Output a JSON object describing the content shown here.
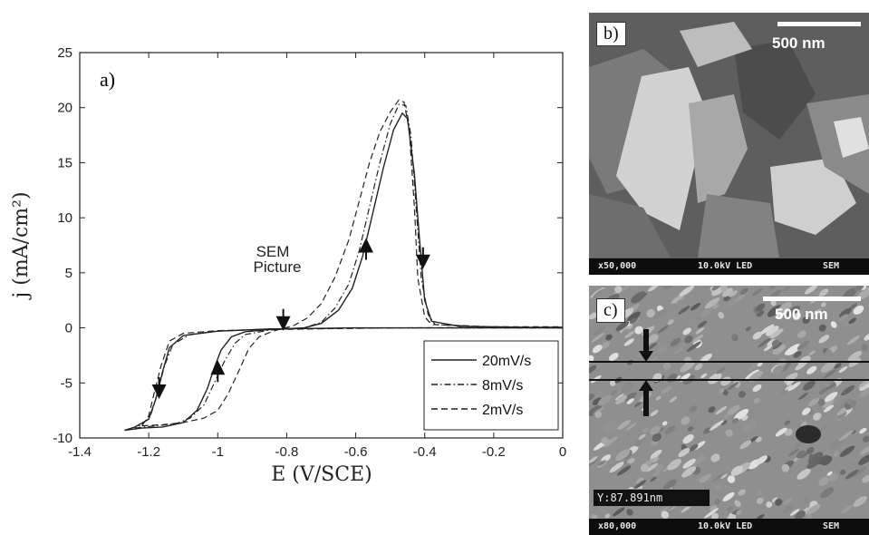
{
  "chart_data": {
    "type": "line",
    "panel_label": "a)",
    "xlabel": "E (V/SCE)",
    "ylabel": "j (mA/cm²)",
    "xlim": [
      -1.4,
      0
    ],
    "ylim": [
      -10,
      25
    ],
    "xticks": [
      "-1.4",
      "-1.2",
      "-1",
      "-0.8",
      "-0.6",
      "-0.4",
      "-0.2",
      "0"
    ],
    "yticks": [
      "-10",
      "-5",
      "0",
      "5",
      "10",
      "15",
      "20",
      "25"
    ],
    "grid": false,
    "legend_position": "bottom-right",
    "annotation": {
      "line1": "SEM",
      "line2": "Picture",
      "x": -0.81,
      "y": 0
    },
    "series": [
      {
        "name": "20mV/s",
        "style": "solid",
        "forward": [
          [
            -1.27,
            -9.3
          ],
          [
            -1.22,
            -9.1
          ],
          [
            -1.16,
            -9.0
          ],
          [
            -1.1,
            -8.6
          ],
          [
            -1.06,
            -7.5
          ],
          [
            -1.03,
            -5.5
          ],
          [
            -1.01,
            -3.6
          ],
          [
            -0.99,
            -2.0
          ],
          [
            -0.96,
            -0.8
          ],
          [
            -0.92,
            -0.35
          ],
          [
            -0.85,
            -0.15
          ],
          [
            -0.75,
            0.0
          ],
          [
            -0.7,
            0.4
          ],
          [
            -0.65,
            1.6
          ],
          [
            -0.61,
            3.6
          ],
          [
            -0.58,
            6.5
          ],
          [
            -0.55,
            10.5
          ],
          [
            -0.52,
            14.5
          ],
          [
            -0.49,
            18.0
          ],
          [
            -0.465,
            19.5
          ],
          [
            -0.45,
            19.0
          ],
          [
            -0.43,
            14.0
          ],
          [
            -0.415,
            8.0
          ],
          [
            -0.4,
            2.5
          ],
          [
            -0.38,
            0.6
          ],
          [
            -0.3,
            0.15
          ],
          [
            -0.1,
            0.05
          ],
          [
            0.0,
            0.05
          ]
        ],
        "reverse": [
          [
            0.0,
            0.0
          ],
          [
            -0.3,
            0.0
          ],
          [
            -0.6,
            0.0
          ],
          [
            -0.85,
            -0.1
          ],
          [
            -1.0,
            -0.3
          ],
          [
            -1.1,
            -0.7
          ],
          [
            -1.14,
            -1.8
          ],
          [
            -1.16,
            -4.0
          ],
          [
            -1.18,
            -6.5
          ],
          [
            -1.2,
            -8.3
          ],
          [
            -1.24,
            -9.0
          ],
          [
            -1.27,
            -9.3
          ]
        ]
      },
      {
        "name": "8mV/s",
        "style": "dashdot",
        "forward": [
          [
            -1.24,
            -9.1
          ],
          [
            -1.18,
            -8.9
          ],
          [
            -1.12,
            -8.7
          ],
          [
            -1.08,
            -8.2
          ],
          [
            -1.04,
            -7.0
          ],
          [
            -1.01,
            -5.0
          ],
          [
            -0.98,
            -3.0
          ],
          [
            -0.95,
            -1.4
          ],
          [
            -0.92,
            -0.6
          ],
          [
            -0.85,
            -0.2
          ],
          [
            -0.75,
            0.0
          ],
          [
            -0.7,
            0.5
          ],
          [
            -0.66,
            1.8
          ],
          [
            -0.62,
            4.0
          ],
          [
            -0.59,
            7.0
          ],
          [
            -0.56,
            11.0
          ],
          [
            -0.53,
            15.0
          ],
          [
            -0.5,
            18.5
          ],
          [
            -0.475,
            20.3
          ],
          [
            -0.455,
            20.2
          ],
          [
            -0.44,
            17.5
          ],
          [
            -0.425,
            11.0
          ],
          [
            -0.41,
            4.5
          ],
          [
            -0.39,
            1.2
          ],
          [
            -0.37,
            0.3
          ],
          [
            -0.2,
            0.05
          ],
          [
            0.0,
            0.0
          ]
        ],
        "reverse": [
          [
            0.0,
            0.0
          ],
          [
            -0.5,
            0.0
          ],
          [
            -0.85,
            -0.1
          ],
          [
            -1.0,
            -0.3
          ],
          [
            -1.08,
            -0.6
          ],
          [
            -1.13,
            -1.5
          ],
          [
            -1.155,
            -3.5
          ],
          [
            -1.175,
            -6.0
          ],
          [
            -1.195,
            -8.0
          ],
          [
            -1.22,
            -8.8
          ],
          [
            -1.24,
            -9.1
          ]
        ]
      },
      {
        "name": "2mV/s",
        "style": "dashed",
        "forward": [
          [
            -1.22,
            -8.9
          ],
          [
            -1.16,
            -8.8
          ],
          [
            -1.1,
            -8.6
          ],
          [
            -1.04,
            -8.2
          ],
          [
            -1.0,
            -7.5
          ],
          [
            -0.97,
            -6.0
          ],
          [
            -0.94,
            -4.0
          ],
          [
            -0.91,
            -1.9
          ],
          [
            -0.88,
            -0.8
          ],
          [
            -0.84,
            -0.3
          ],
          [
            -0.78,
            0.2
          ],
          [
            -0.74,
            0.9
          ],
          [
            -0.7,
            2.2
          ],
          [
            -0.66,
            4.6
          ],
          [
            -0.62,
            8.0
          ],
          [
            -0.59,
            11.5
          ],
          [
            -0.56,
            15.0
          ],
          [
            -0.53,
            17.8
          ],
          [
            -0.5,
            19.6
          ],
          [
            -0.475,
            20.7
          ],
          [
            -0.46,
            20.5
          ],
          [
            -0.445,
            18.0
          ],
          [
            -0.43,
            11.0
          ],
          [
            -0.42,
            4.5
          ],
          [
            -0.4,
            1.0
          ],
          [
            -0.38,
            0.3
          ],
          [
            -0.2,
            0.1
          ],
          [
            0.0,
            0.1
          ]
        ],
        "reverse": [
          [
            0.0,
            0.05
          ],
          [
            -0.5,
            0.0
          ],
          [
            -0.85,
            -0.15
          ],
          [
            -1.0,
            -0.25
          ],
          [
            -1.1,
            -0.5
          ],
          [
            -1.14,
            -1.2
          ],
          [
            -1.165,
            -3.5
          ],
          [
            -1.185,
            -6.0
          ],
          [
            -1.2,
            -8.0
          ],
          [
            -1.22,
            -8.9
          ]
        ]
      }
    ],
    "arrows": [
      {
        "direction": "down",
        "x": -1.17,
        "y": -5.8
      },
      {
        "direction": "up",
        "x": -1.0,
        "y": -3.6
      },
      {
        "direction": "up",
        "x": -0.57,
        "y": 7.5
      },
      {
        "direction": "down",
        "x": -0.405,
        "y": 6.0
      },
      {
        "direction": "down",
        "x": -0.81,
        "y": 0.4
      }
    ]
  },
  "panels": {
    "b": {
      "label": "b)",
      "scale_label": "500 nm",
      "info_mag": "x50,000",
      "info_kv": "10.0kV LED",
      "info_mode": "SEM"
    },
    "c": {
      "label": "c)",
      "scale_label": "500 nm",
      "measurement": "Y:87.891nm",
      "info_mag": "x80,000",
      "info_kv": "10.0kV LED",
      "info_mode": "SEM"
    }
  }
}
